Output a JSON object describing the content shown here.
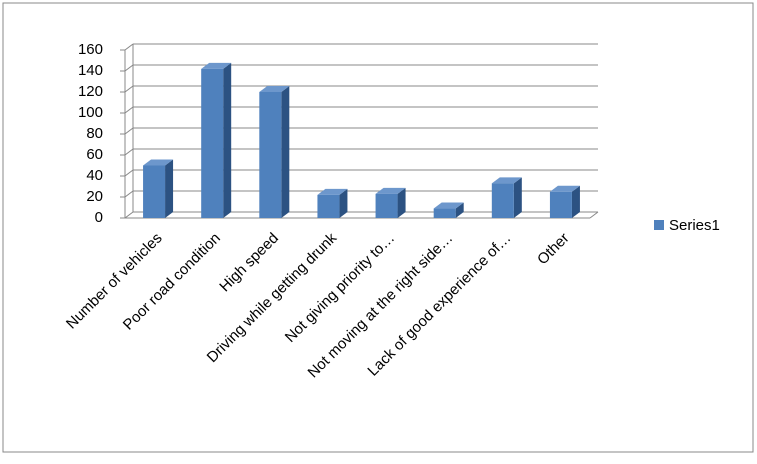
{
  "chart_data": {
    "type": "bar3d",
    "categories": [
      "Number of vehicles",
      "Poor road condition",
      "High speed",
      "Driving while getting drunk",
      "Not giving priority to…",
      "Not moving at the right side…",
      "Lack of good experience of…",
      "Other"
    ],
    "series": [
      {
        "name": "Series1",
        "color": "#4f81bd",
        "values": [
          50,
          142,
          120,
          22,
          23,
          9,
          33,
          25
        ]
      }
    ],
    "ylim": [
      0,
      160
    ],
    "yticks": [
      0,
      20,
      40,
      60,
      80,
      100,
      120,
      140,
      160
    ],
    "grid": true,
    "legend": "right"
  }
}
